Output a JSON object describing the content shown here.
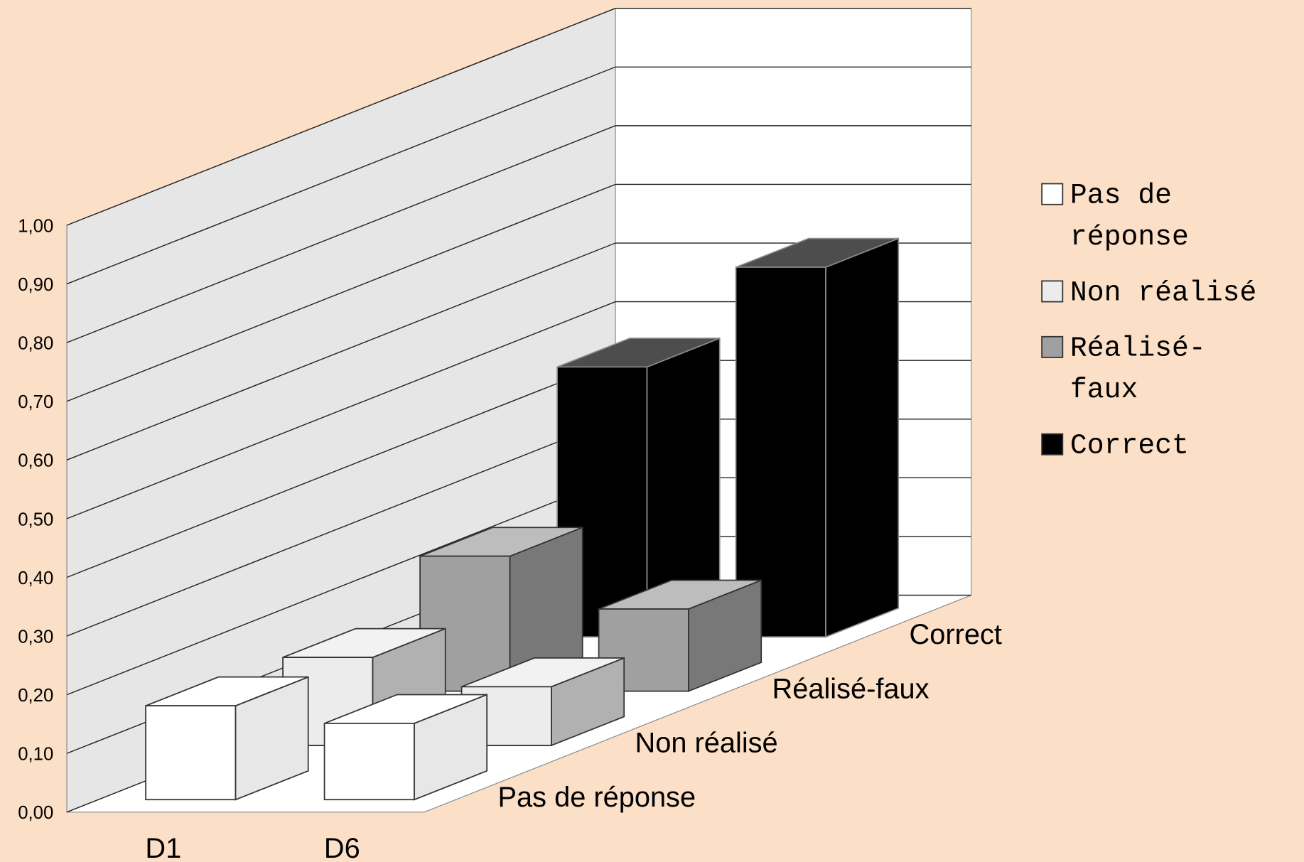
{
  "chart_data": {
    "type": "bar3d",
    "categories": [
      "D1",
      "D6"
    ],
    "series": [
      {
        "name": "Pas de réponse",
        "color": "#ffffff",
        "values": [
          0.16,
          0.13
        ]
      },
      {
        "name": "Non réalisé",
        "color": "#ececec",
        "values": [
          0.15,
          0.1
        ]
      },
      {
        "name": "Réalisé-faux",
        "color": "#a0a0a0",
        "values": [
          0.23,
          0.14
        ]
      },
      {
        "name": "Correct",
        "color": "#000000",
        "values": [
          0.46,
          0.63
        ]
      }
    ],
    "ylim": [
      0,
      1
    ],
    "yticks": [
      {
        "value": 0,
        "label": "0,00"
      },
      {
        "value": 0.1,
        "label": "0,10"
      },
      {
        "value": 0.2,
        "label": "0,20"
      },
      {
        "value": 0.3,
        "label": "0,30"
      },
      {
        "value": 0.4,
        "label": "0,40"
      },
      {
        "value": 0.5,
        "label": "0,50"
      },
      {
        "value": 0.6,
        "label": "0,60"
      },
      {
        "value": 0.7,
        "label": "0,70"
      },
      {
        "value": 0.8,
        "label": "0,80"
      },
      {
        "value": 0.9,
        "label": "0,90"
      },
      {
        "value": 1,
        "label": "1,00"
      }
    ],
    "grid": true,
    "legend": "right"
  }
}
